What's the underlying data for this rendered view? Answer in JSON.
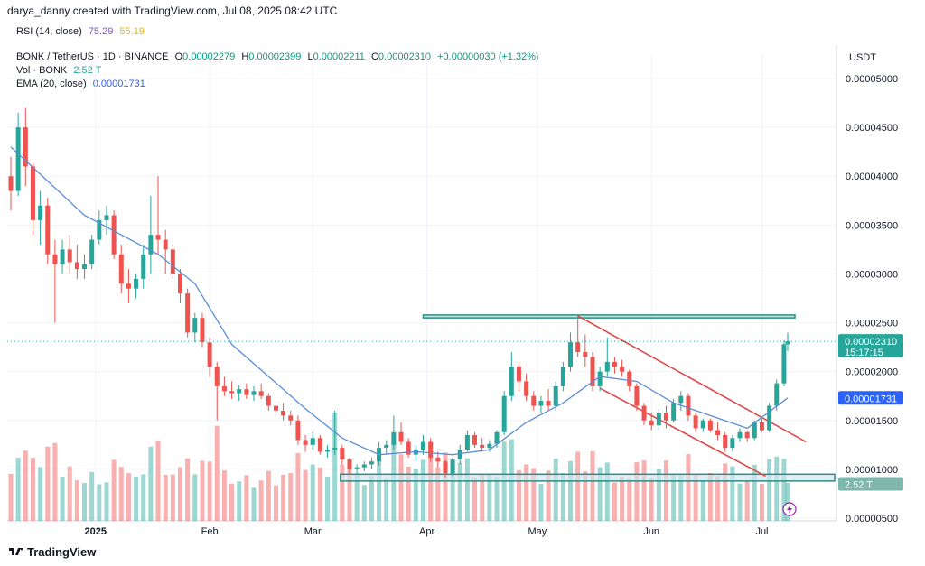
{
  "header": {
    "attribution": "darya_danny created with TradingView.com, Jul 08, 2025 08:42 UTC"
  },
  "rsi": {
    "label": "RSI (14, close)",
    "value1": "75.29",
    "value2": "55.19"
  },
  "symbol": {
    "name": "BONK / TetherUS · 1D · BINANCE",
    "o_label": "O",
    "o": "0.00002279",
    "h_label": "H",
    "h": "0.00002399",
    "l_label": "L",
    "l": "0.00002211",
    "c_label": "C",
    "c": "0.00002310",
    "change": "+0.00000030 (+1.32%)"
  },
  "vol": {
    "label": "Vol · BONK",
    "value": "2.52 T"
  },
  "ema": {
    "label": "EMA (20, close)",
    "value": "0.00001731"
  },
  "axis": {
    "currency": "USDT",
    "ticks": [
      "0.00005000",
      "0.00004500",
      "0.00004000",
      "0.00003500",
      "0.00003000",
      "0.00002500",
      "0.00002000",
      "0.00001500",
      "0.00001000",
      "0.00000500"
    ],
    "months": [
      "2025",
      "Feb",
      "Mar",
      "Apr",
      "May",
      "Jun",
      "Jul"
    ]
  },
  "badges": {
    "price": "0.00002310",
    "countdown": "15:17:15",
    "ema": "0.00001731",
    "volume": "2.52 T"
  },
  "footer": {
    "logo_text": "TradingView"
  },
  "colors": {
    "up": "#26a69a",
    "down": "#ef5350",
    "ema": "#5b8dd9",
    "zone": "#2a8f85",
    "channel": "#e04848"
  },
  "chart_data": {
    "type": "candlestick",
    "title": "BONK / TetherUS · 1D · BINANCE",
    "ylabel": "USDT",
    "ylim": [
      5e-06,
      5e-05
    ],
    "x_range": [
      "2024-12-09",
      "2025-07-08"
    ],
    "resistance_zone": [
      2.55e-05,
      2.58e-05
    ],
    "support_zone": [
      8.8e-06,
      9.5e-06
    ],
    "descending_channel": {
      "upper": [
        [
          "2025-05-12",
          2.57e-05
        ],
        [
          "2025-07-13",
          1.28e-05
        ]
      ],
      "lower": [
        [
          "2025-05-18",
          1.83e-05
        ],
        [
          "2025-07-02",
          9.3e-06
        ]
      ]
    },
    "series": [
      {
        "name": "Price",
        "values": [
          [
            "2024-12-09",
            4e-05,
            4.2e-05,
            3.65e-05,
            3.85e-05
          ],
          [
            "2024-12-11",
            3.85e-05,
            4.65e-05,
            3.8e-05,
            4.5e-05
          ],
          [
            "2024-12-13",
            4.5e-05,
            4.7e-05,
            3.9e-05,
            4.1e-05
          ],
          [
            "2024-12-15",
            4.1e-05,
            4.15e-05,
            3.4e-05,
            3.55e-05
          ],
          [
            "2024-12-17",
            3.55e-05,
            3.85e-05,
            3.3e-05,
            3.7e-05
          ],
          [
            "2024-12-19",
            3.7e-05,
            3.78e-05,
            3.1e-05,
            3.2e-05
          ],
          [
            "2024-12-21",
            3.2e-05,
            3.35e-05,
            2.5e-05,
            3.1e-05
          ],
          [
            "2024-12-23",
            3.1e-05,
            3.35e-05,
            3e-05,
            3.25e-05
          ],
          [
            "2024-12-25",
            3.25e-05,
            3.4e-05,
            3e-05,
            3.12e-05
          ],
          [
            "2024-12-27",
            3.12e-05,
            3.3e-05,
            2.95e-05,
            3.05e-05
          ],
          [
            "2024-12-29",
            3.05e-05,
            3.2e-05,
            2.95e-05,
            3.1e-05
          ],
          [
            "2024-12-31",
            3.1e-05,
            3.4e-05,
            3.05e-05,
            3.35e-05
          ],
          [
            "2025-01-02",
            3.35e-05,
            3.65e-05,
            3.3e-05,
            3.55e-05
          ],
          [
            "2025-01-04",
            3.55e-05,
            3.7e-05,
            3.4e-05,
            3.6e-05
          ],
          [
            "2025-01-06",
            3.6e-05,
            3.65e-05,
            3.15e-05,
            3.2e-05
          ],
          [
            "2025-01-08",
            3.2e-05,
            3.3e-05,
            2.8e-05,
            2.9e-05
          ],
          [
            "2025-01-10",
            2.9e-05,
            3.05e-05,
            2.7e-05,
            2.85e-05
          ],
          [
            "2025-01-12",
            2.85e-05,
            3e-05,
            2.75e-05,
            2.95e-05
          ],
          [
            "2025-01-14",
            2.95e-05,
            3.3e-05,
            2.85e-05,
            3.2e-05
          ],
          [
            "2025-01-16",
            3.2e-05,
            3.8e-05,
            3e-05,
            3.4e-05
          ],
          [
            "2025-01-18",
            3.4e-05,
            4e-05,
            3.2e-05,
            3.35e-05
          ],
          [
            "2025-01-20",
            3.35e-05,
            3.45e-05,
            3e-05,
            3.25e-05
          ],
          [
            "2025-01-22",
            3.25e-05,
            3.3e-05,
            2.95e-05,
            3e-05
          ],
          [
            "2025-01-24",
            3e-05,
            3.05e-05,
            2.7e-05,
            2.8e-05
          ],
          [
            "2025-01-26",
            2.8e-05,
            2.85e-05,
            2.35e-05,
            2.4e-05
          ],
          [
            "2025-01-28",
            2.4e-05,
            2.6e-05,
            2.3e-05,
            2.55e-05
          ],
          [
            "2025-01-30",
            2.55e-05,
            2.6e-05,
            2.25e-05,
            2.3e-05
          ],
          [
            "2025-02-01",
            2.3e-05,
            2.35e-05,
            1.95e-05,
            2.05e-05
          ],
          [
            "2025-02-03",
            2.05e-05,
            2.1e-05,
            1.5e-05,
            1.85e-05
          ],
          [
            "2025-02-05",
            1.85e-05,
            1.95e-05,
            1.75e-05,
            1.8e-05
          ],
          [
            "2025-02-07",
            1.8e-05,
            1.9e-05,
            1.72e-05,
            1.78e-05
          ],
          [
            "2025-02-09",
            1.78e-05,
            1.86e-05,
            1.7e-05,
            1.82e-05
          ],
          [
            "2025-02-11",
            1.82e-05,
            1.88e-05,
            1.72e-05,
            1.76e-05
          ],
          [
            "2025-02-13",
            1.76e-05,
            1.85e-05,
            1.7e-05,
            1.8e-05
          ],
          [
            "2025-02-15",
            1.8e-05,
            1.88e-05,
            1.72e-05,
            1.75e-05
          ],
          [
            "2025-02-17",
            1.75e-05,
            1.78e-05,
            1.6e-05,
            1.65e-05
          ],
          [
            "2025-02-19",
            1.65e-05,
            1.7e-05,
            1.55e-05,
            1.6e-05
          ],
          [
            "2025-02-21",
            1.6e-05,
            1.68e-05,
            1.5e-05,
            1.55e-05
          ],
          [
            "2025-02-23",
            1.55e-05,
            1.6e-05,
            1.45e-05,
            1.5e-05
          ],
          [
            "2025-02-25",
            1.5e-05,
            1.55e-05,
            1.25e-05,
            1.3e-05
          ],
          [
            "2025-02-27",
            1.3e-05,
            1.35e-05,
            1.18e-05,
            1.25e-05
          ],
          [
            "2025-03-01",
            1.25e-05,
            1.38e-05,
            1.2e-05,
            1.32e-05
          ],
          [
            "2025-03-03",
            1.32e-05,
            1.35e-05,
            1.15e-05,
            1.18e-05
          ],
          [
            "2025-03-05",
            1.18e-05,
            1.25e-05,
            1.12e-05,
            1.2e-05
          ],
          [
            "2025-03-07",
            1.2e-05,
            1.6e-05,
            1.15e-05,
            1.22e-05
          ],
          [
            "2025-03-09",
            1.22e-05,
            1.25e-05,
            1.05e-05,
            1.1e-05
          ],
          [
            "2025-03-11",
            1.1e-05,
            1.12e-05,
            9.6e-06,
            1e-05
          ],
          [
            "2025-03-13",
            1e-05,
            1.05e-05,
            9.5e-06,
            1.02e-05
          ],
          [
            "2025-03-15",
            1.02e-05,
            1.08e-05,
            9.8e-06,
            1.05e-05
          ],
          [
            "2025-03-17",
            1.05e-05,
            1.12e-05,
            1e-05,
            1.08e-05
          ],
          [
            "2025-03-19",
            1.08e-05,
            1.28e-05,
            1.04e-05,
            1.22e-05
          ],
          [
            "2025-03-21",
            1.22e-05,
            1.3e-05,
            1.15e-05,
            1.25e-05
          ],
          [
            "2025-03-23",
            1.25e-05,
            1.55e-05,
            1.2e-05,
            1.38e-05
          ],
          [
            "2025-03-25",
            1.38e-05,
            1.48e-05,
            1.25e-05,
            1.28e-05
          ],
          [
            "2025-03-27",
            1.28e-05,
            1.32e-05,
            1.12e-05,
            1.15e-05
          ],
          [
            "2025-03-29",
            1.15e-05,
            1.25e-05,
            1.08e-05,
            1.2e-05
          ],
          [
            "2025-03-31",
            1.2e-05,
            1.35e-05,
            1.15e-05,
            1.28e-05
          ],
          [
            "2025-04-02",
            1.28e-05,
            1.32e-05,
            1.08e-05,
            1.12e-05
          ],
          [
            "2025-04-04",
            1.12e-05,
            1.18e-05,
            1.02e-05,
            1.08e-05
          ],
          [
            "2025-04-06",
            1.08e-05,
            1.1e-05,
            9.2e-06,
            9.6e-06
          ],
          [
            "2025-04-08",
            9.6e-06,
            1.12e-05,
            9.3e-06,
            1.1e-05
          ],
          [
            "2025-04-10",
            1.1e-05,
            1.25e-05,
            1.05e-05,
            1.2e-05
          ],
          [
            "2025-04-12",
            1.2e-05,
            1.4e-05,
            1.18e-05,
            1.35e-05
          ],
          [
            "2025-04-14",
            1.35e-05,
            1.38e-05,
            1.22e-05,
            1.25e-05
          ],
          [
            "2025-04-16",
            1.25e-05,
            1.32e-05,
            1.18e-05,
            1.22e-05
          ],
          [
            "2025-04-18",
            1.22e-05,
            1.3e-05,
            1.18e-05,
            1.26e-05
          ],
          [
            "2025-04-20",
            1.26e-05,
            1.4e-05,
            1.22e-05,
            1.38e-05
          ],
          [
            "2025-04-22",
            1.38e-05,
            1.8e-05,
            1.35e-05,
            1.75e-05
          ],
          [
            "2025-04-24",
            1.75e-05,
            2.2e-05,
            1.7e-05,
            2.05e-05
          ],
          [
            "2025-04-26",
            2.05e-05,
            2.1e-05,
            1.8e-05,
            1.9e-05
          ],
          [
            "2025-04-28",
            1.9e-05,
            1.98e-05,
            1.7e-05,
            1.75e-05
          ],
          [
            "2025-04-30",
            1.75e-05,
            1.8e-05,
            1.6e-05,
            1.65e-05
          ],
          [
            "2025-05-02",
            1.65e-05,
            1.75e-05,
            1.58e-05,
            1.7e-05
          ],
          [
            "2025-05-04",
            1.7e-05,
            1.82e-05,
            1.6e-05,
            1.65e-05
          ],
          [
            "2025-05-06",
            1.65e-05,
            1.9e-05,
            1.6e-05,
            1.85e-05
          ],
          [
            "2025-05-08",
            1.85e-05,
            2.1e-05,
            1.8e-05,
            2.05e-05
          ],
          [
            "2025-05-10",
            2.05e-05,
            2.4e-05,
            2e-05,
            2.3e-05
          ],
          [
            "2025-05-12",
            2.3e-05,
            2.57e-05,
            2.15e-05,
            2.2e-05
          ],
          [
            "2025-05-14",
            2.2e-05,
            2.38e-05,
            2.05e-05,
            2.15e-05
          ],
          [
            "2025-05-16",
            2.15e-05,
            2.2e-05,
            1.8e-05,
            1.85e-05
          ],
          [
            "2025-05-18",
            1.85e-05,
            2.05e-05,
            1.8e-05,
            2e-05
          ],
          [
            "2025-05-20",
            2e-05,
            2.35e-05,
            1.95e-05,
            2.1e-05
          ],
          [
            "2025-05-22",
            2.1e-05,
            2.15e-05,
            1.98e-05,
            2.05e-05
          ],
          [
            "2025-05-24",
            2.05e-05,
            2.12e-05,
            1.95e-05,
            2e-05
          ],
          [
            "2025-05-26",
            2e-05,
            2.02e-05,
            1.8e-05,
            1.85e-05
          ],
          [
            "2025-05-28",
            1.85e-05,
            1.88e-05,
            1.6e-05,
            1.65e-05
          ],
          [
            "2025-05-30",
            1.65e-05,
            1.68e-05,
            1.45e-05,
            1.5e-05
          ],
          [
            "2025-06-01",
            1.5e-05,
            1.58e-05,
            1.4e-05,
            1.45e-05
          ],
          [
            "2025-06-03",
            1.45e-05,
            1.62e-05,
            1.4e-05,
            1.58e-05
          ],
          [
            "2025-06-05",
            1.58e-05,
            1.65e-05,
            1.42e-05,
            1.5e-05
          ],
          [
            "2025-06-07",
            1.5e-05,
            1.72e-05,
            1.48e-05,
            1.68e-05
          ],
          [
            "2025-06-09",
            1.68e-05,
            1.8e-05,
            1.6e-05,
            1.75e-05
          ],
          [
            "2025-06-11",
            1.75e-05,
            1.78e-05,
            1.5e-05,
            1.55e-05
          ],
          [
            "2025-06-13",
            1.55e-05,
            1.58e-05,
            1.38e-05,
            1.42e-05
          ],
          [
            "2025-06-15",
            1.42e-05,
            1.52e-05,
            1.38e-05,
            1.5e-05
          ],
          [
            "2025-06-17",
            1.5e-05,
            1.52e-05,
            1.38e-05,
            1.4e-05
          ],
          [
            "2025-06-19",
            1.4e-05,
            1.48e-05,
            1.3e-05,
            1.35e-05
          ],
          [
            "2025-06-21",
            1.35e-05,
            1.38e-05,
            1.18e-05,
            1.22e-05
          ],
          [
            "2025-06-23",
            1.22e-05,
            1.35e-05,
            1.18e-05,
            1.32e-05
          ],
          [
            "2025-06-25",
            1.32e-05,
            1.42e-05,
            1.28e-05,
            1.38e-05
          ],
          [
            "2025-06-27",
            1.38e-05,
            1.4e-05,
            1.28e-05,
            1.32e-05
          ],
          [
            "2025-06-29",
            1.32e-05,
            1.5e-05,
            1.3e-05,
            1.48e-05
          ],
          [
            "2025-07-01",
            1.48e-05,
            1.52e-05,
            1.38e-05,
            1.4e-05
          ],
          [
            "2025-07-03",
            1.4e-05,
            1.68e-05,
            1.38e-05,
            1.65e-05
          ],
          [
            "2025-07-05",
            1.65e-05,
            1.92e-05,
            1.6e-05,
            1.88e-05
          ],
          [
            "2025-07-07",
            1.88e-05,
            2.32e-05,
            1.85e-05,
            2.28e-05
          ],
          [
            "2025-07-08",
            2.279e-05,
            2.399e-05,
            2.211e-05,
            2.31e-05
          ]
        ]
      },
      {
        "name": "EMA (20, close)",
        "values": [
          [
            "2024-12-09",
            4.3e-05
          ],
          [
            "2024-12-19",
            3.95e-05
          ],
          [
            "2024-12-29",
            3.6e-05
          ],
          [
            "2025-01-08",
            3.4e-05
          ],
          [
            "2025-01-18",
            3.2e-05
          ],
          [
            "2025-01-28",
            2.9e-05
          ],
          [
            "2025-02-07",
            2.28e-05
          ],
          [
            "2025-02-17",
            1.95e-05
          ],
          [
            "2025-02-27",
            1.62e-05
          ],
          [
            "2025-03-09",
            1.32e-05
          ],
          [
            "2025-03-19",
            1.15e-05
          ],
          [
            "2025-03-29",
            1.18e-05
          ],
          [
            "2025-04-08",
            1.15e-05
          ],
          [
            "2025-04-18",
            1.2e-05
          ],
          [
            "2025-04-28",
            1.48e-05
          ],
          [
            "2025-05-08",
            1.68e-05
          ],
          [
            "2025-05-18",
            1.95e-05
          ],
          [
            "2025-05-28",
            1.9e-05
          ],
          [
            "2025-06-07",
            1.68e-05
          ],
          [
            "2025-06-17",
            1.55e-05
          ],
          [
            "2025-06-27",
            1.42e-05
          ],
          [
            "2025-07-08",
            1.731e-05
          ]
        ]
      }
    ]
  }
}
